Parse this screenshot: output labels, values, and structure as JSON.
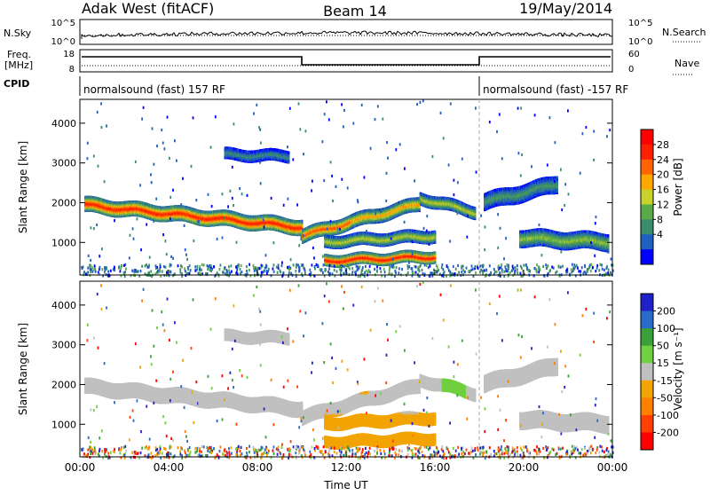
{
  "header": {
    "title_left": "Adak West (fitACF)",
    "title_center": "Beam 14",
    "title_right": "19/May/2014"
  },
  "noise_panel": {
    "label_left": "N.Sky",
    "label_right": "N.Search",
    "ticks_left": [
      "10^5",
      "10^0"
    ],
    "ticks_right": [
      "10^5",
      "10^0"
    ]
  },
  "freq_panel": {
    "label_left_line1": "Freq.",
    "label_left_line2": "[MHz]",
    "label_right": "Nave",
    "ticks_left": [
      "18",
      "8"
    ],
    "ticks_right": [
      "60",
      "0"
    ]
  },
  "cpid_panel": {
    "label": "CPID",
    "program_1": "normalsound (fast) 157 RF",
    "program_2": "normalsound (fast) -157 RF"
  },
  "colors": {
    "power_scale": [
      "#0000ff",
      "#2060c0",
      "#3c8c6e",
      "#5aaa4a",
      "#c8d22a",
      "#ffa800",
      "#ff6400",
      "#ff2000",
      "#ff0000"
    ],
    "velocity_scale": [
      "#2020c8",
      "#2a6ac8",
      "#3aa03a",
      "#70d040",
      "#c0c0c0",
      "#f2a400",
      "#ff8000",
      "#ff4000",
      "#ff0000"
    ],
    "ground_scatter": "#c0c0c0"
  },
  "chart_data": [
    {
      "type": "heatmap",
      "name": "power",
      "xlabel": "",
      "ylabel": "Slant Range [km]",
      "x_range_hours": [
        0,
        24
      ],
      "ylim": [
        180,
        4600
      ],
      "yticks": [
        "1000",
        "2000",
        "3000",
        "4000"
      ],
      "colorbar_label": "Power [dB]",
      "colorbar_ticks": [
        "4",
        "8",
        "12",
        "16",
        "20",
        "24",
        "28"
      ],
      "colorbar_range": [
        0,
        30
      ],
      "features": [
        {
          "t0": 0.2,
          "t1": 10.0,
          "r0": 1980,
          "r1": 1420,
          "width": 330,
          "peak_db": 27
        },
        {
          "t0": 10.0,
          "t1": 12.2,
          "r0": 1200,
          "r1": 1550,
          "width": 300,
          "peak_db": 24
        },
        {
          "t0": 12.2,
          "t1": 15.3,
          "r0": 1550,
          "r1": 2000,
          "width": 300,
          "peak_db": 20
        },
        {
          "t0": 11.0,
          "t1": 16.0,
          "r0": 580,
          "r1": 680,
          "width": 240,
          "peak_db": 28
        },
        {
          "t0": 11.0,
          "t1": 16.0,
          "r0": 1050,
          "r1": 1200,
          "width": 260,
          "peak_db": 16
        },
        {
          "t0": 15.3,
          "t1": 17.8,
          "r0": 2150,
          "r1": 1800,
          "width": 260,
          "peak_db": 16
        },
        {
          "t0": 18.2,
          "t1": 21.5,
          "r0": 2050,
          "r1": 2500,
          "width": 380,
          "peak_db": 10
        },
        {
          "t0": 19.8,
          "t1": 23.8,
          "r0": 1150,
          "r1": 1050,
          "width": 380,
          "peak_db": 14
        },
        {
          "t0": 6.5,
          "t1": 9.4,
          "r0": 3250,
          "r1": 3200,
          "width": 240,
          "peak_db": 9
        }
      ]
    },
    {
      "type": "heatmap",
      "name": "velocity",
      "xlabel": "Time UT",
      "ylabel": "Slant Range [km]",
      "x_range_hours": [
        0,
        24
      ],
      "ylim": [
        180,
        4600
      ],
      "yticks": [
        "1000",
        "2000",
        "3000",
        "4000"
      ],
      "xticks": [
        "00:00",
        "04:00",
        "08:00",
        "12:00",
        "16:00",
        "20:00",
        "00:00"
      ],
      "xtick_hours": [
        0,
        4,
        8,
        12,
        16,
        20,
        24
      ],
      "colorbar_label": "Velocity [m s⁻¹]",
      "colorbar_ticks": [
        "200",
        "100",
        "50",
        "15",
        "-15",
        "-50",
        "-100",
        "-200"
      ]
    }
  ]
}
